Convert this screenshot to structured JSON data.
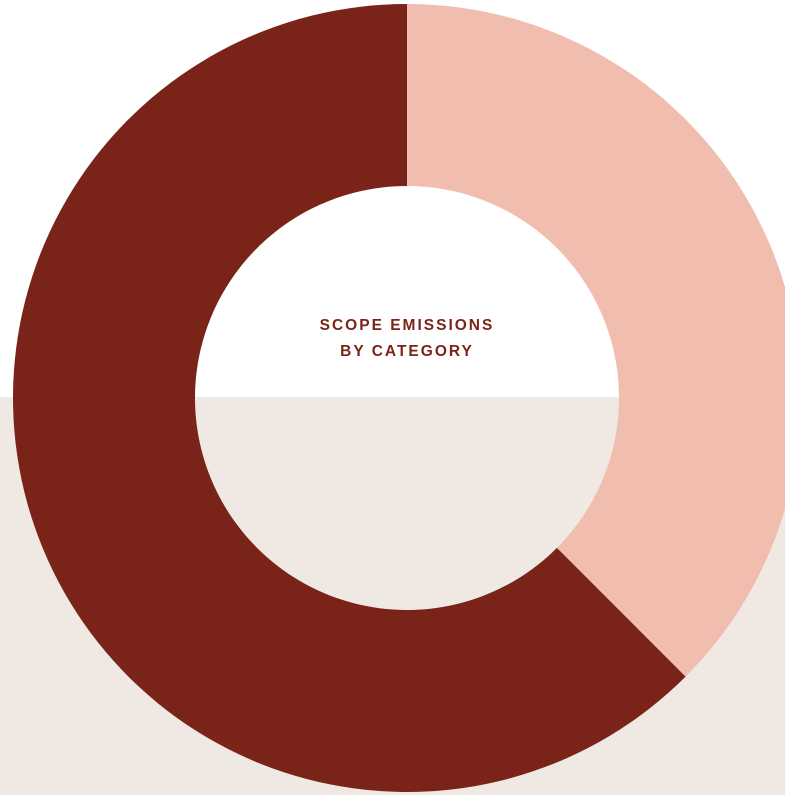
{
  "colors": {
    "page_background": "#ffffff",
    "lower_band": "#f0e9e3",
    "title_text": "#7a2419"
  },
  "chart_data": {
    "type": "pie",
    "variant": "donut",
    "title_lines": [
      "SCOPE EMISSIONS",
      "BY CATEGORY"
    ],
    "slices": [
      {
        "value": 37.5,
        "color": "#f0bdae"
      },
      {
        "value": 62.5,
        "color": "#7a2419"
      }
    ],
    "start_angle_deg": 0,
    "direction": "clockwise",
    "legend": "none"
  }
}
